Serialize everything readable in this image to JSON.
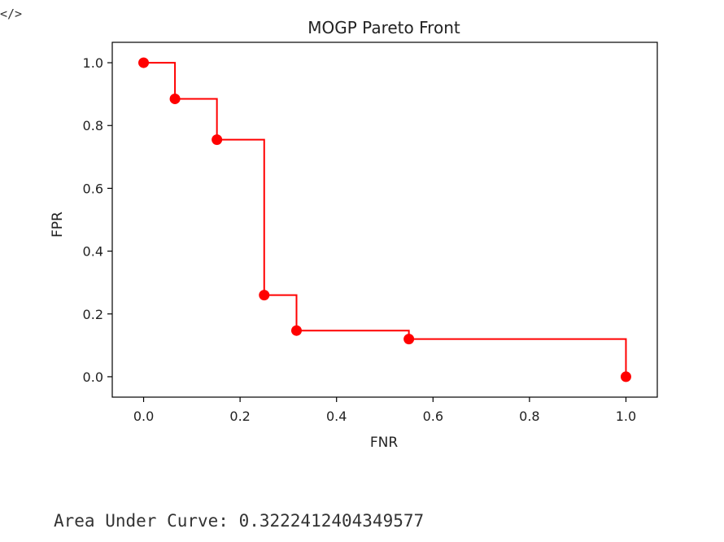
{
  "cell": {
    "code_icon_glyph": "</>",
    "output_text": "Area Under Curve: 0.3222412404349577"
  },
  "chart_data": {
    "type": "line",
    "title": "MOGP Pareto Front",
    "xlabel": "FNR",
    "ylabel": "FPR",
    "xlim": [
      -0.065,
      1.065
    ],
    "ylim": [
      -0.065,
      1.065
    ],
    "xticks": [
      "0.0",
      "0.2",
      "0.4",
      "0.6",
      "0.8",
      "1.0"
    ],
    "yticks": [
      "0.0",
      "0.2",
      "0.4",
      "0.6",
      "0.8",
      "1.0"
    ],
    "grid": false,
    "step": "post",
    "color": "#ff0000",
    "series": [
      {
        "x": [
          0.0,
          0.065,
          0.152,
          0.25,
          0.317,
          0.55,
          1.0
        ],
        "y": [
          1.0,
          0.885,
          0.755,
          0.26,
          0.147,
          0.12,
          0.0
        ]
      }
    ]
  }
}
